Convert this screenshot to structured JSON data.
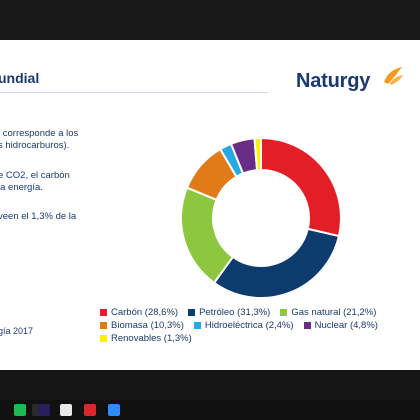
{
  "slide": {
    "title": "undial",
    "body_lines": [
      "l corresponde a los",
      "s hidrocarburos).",
      "e CO2, el carbón",
      " la energía.",
      "veen el 1,3% de la"
    ],
    "source": "gía 2017",
    "logo_text": "Naturgy"
  },
  "colors": {
    "coal": "#e21f26",
    "oil": "#0d3b6e",
    "gas": "#8dc63f",
    "biomass": "#e07b19",
    "hydro": "#27aae1",
    "nuclear": "#6a2d86",
    "renewables": "#fff200",
    "logo_accent": "#f59a21"
  },
  "chart_data": {
    "type": "pie",
    "donut": true,
    "categories": [
      "Carbón",
      "Petróleo",
      "Gas natural",
      "Biomasa",
      "Hidroeléctrica",
      "Nuclear",
      "Renovables"
    ],
    "values": [
      28.6,
      31.3,
      21.2,
      10.3,
      2.4,
      4.8,
      1.3
    ],
    "legend_labels": [
      "Carbón (28,6%)",
      "Petróleo (31,3%)",
      "Gas natural (21,2%)",
      "Biomasa (10,3%)",
      "Hidroeléctrica (2,4%)",
      "Nuclear (4,8%)",
      "Renovables (1,3%)"
    ],
    "series_colors": [
      "#e21f26",
      "#0d3b6e",
      "#8dc63f",
      "#e07b19",
      "#27aae1",
      "#6a2d86",
      "#fff200"
    ],
    "legend_position": "bottom",
    "start_angle_deg": 0,
    "direction": "clockwise"
  },
  "taskbar": {
    "icons": [
      "spotify-icon",
      "media-player-icon",
      "premiere-icon",
      "chrome-icon",
      "acrobat-icon",
      "zoom-icon"
    ],
    "icon_colors": [
      "#1db954",
      "#2b2b2b",
      "#2a1f5e",
      "#e8e8e8",
      "#d8282e",
      "#2d8cff"
    ]
  }
}
